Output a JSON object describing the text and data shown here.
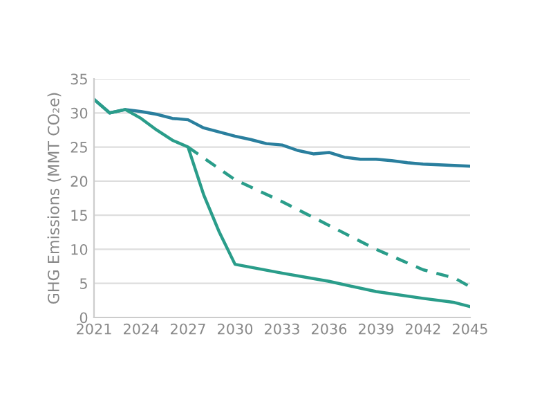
{
  "chart_data": {
    "type": "line",
    "ylabel": "GHG Emissions (MMT CO₂e)",
    "xlim": [
      2021,
      2045
    ],
    "xticks": [
      2021,
      2024,
      2027,
      2030,
      2033,
      2036,
      2039,
      2042,
      2045
    ],
    "ylim": [
      0,
      35
    ],
    "yticks": [
      0,
      5,
      10,
      15,
      20,
      25,
      30,
      35
    ],
    "grid": "y",
    "legend": false,
    "marker": "none",
    "series": [
      {
        "color": "#2a7f9e",
        "line_style": "solid",
        "x": [
          2021,
          2022,
          2023,
          2024,
          2025,
          2026,
          2027,
          2028,
          2029,
          2030,
          2031,
          2032,
          2033,
          2034,
          2035,
          2036,
          2037,
          2038,
          2039,
          2040,
          2041,
          2042,
          2043,
          2044,
          2045
        ],
        "values": [
          32,
          30,
          30.5,
          30.2,
          29.8,
          29.2,
          29,
          27.8,
          27.2,
          26.6,
          26.1,
          25.5,
          25.3,
          24.5,
          24,
          24.2,
          23.5,
          23.2,
          23.2,
          23,
          22.7,
          22.5,
          22.4,
          22.3,
          22.2
        ]
      },
      {
        "color": "#2a9d8a",
        "line_style": "solid",
        "x": [
          2021,
          2022,
          2023,
          2024,
          2025,
          2026,
          2027,
          2028,
          2029,
          2030,
          2033,
          2036,
          2039,
          2042,
          2044,
          2045
        ],
        "values": [
          32,
          30,
          30.5,
          29.2,
          27.5,
          26,
          25,
          18,
          12.5,
          7.8,
          6.5,
          5.3,
          3.8,
          2.8,
          2.2,
          1.6
        ]
      },
      {
        "color": "#2a9d8a",
        "line_style": "dashed",
        "x": [
          2027,
          2030,
          2033,
          2036,
          2039,
          2042,
          2044,
          2045
        ],
        "values": [
          25,
          20.2,
          17,
          13.5,
          10,
          7,
          5.8,
          4.5
        ]
      }
    ]
  }
}
